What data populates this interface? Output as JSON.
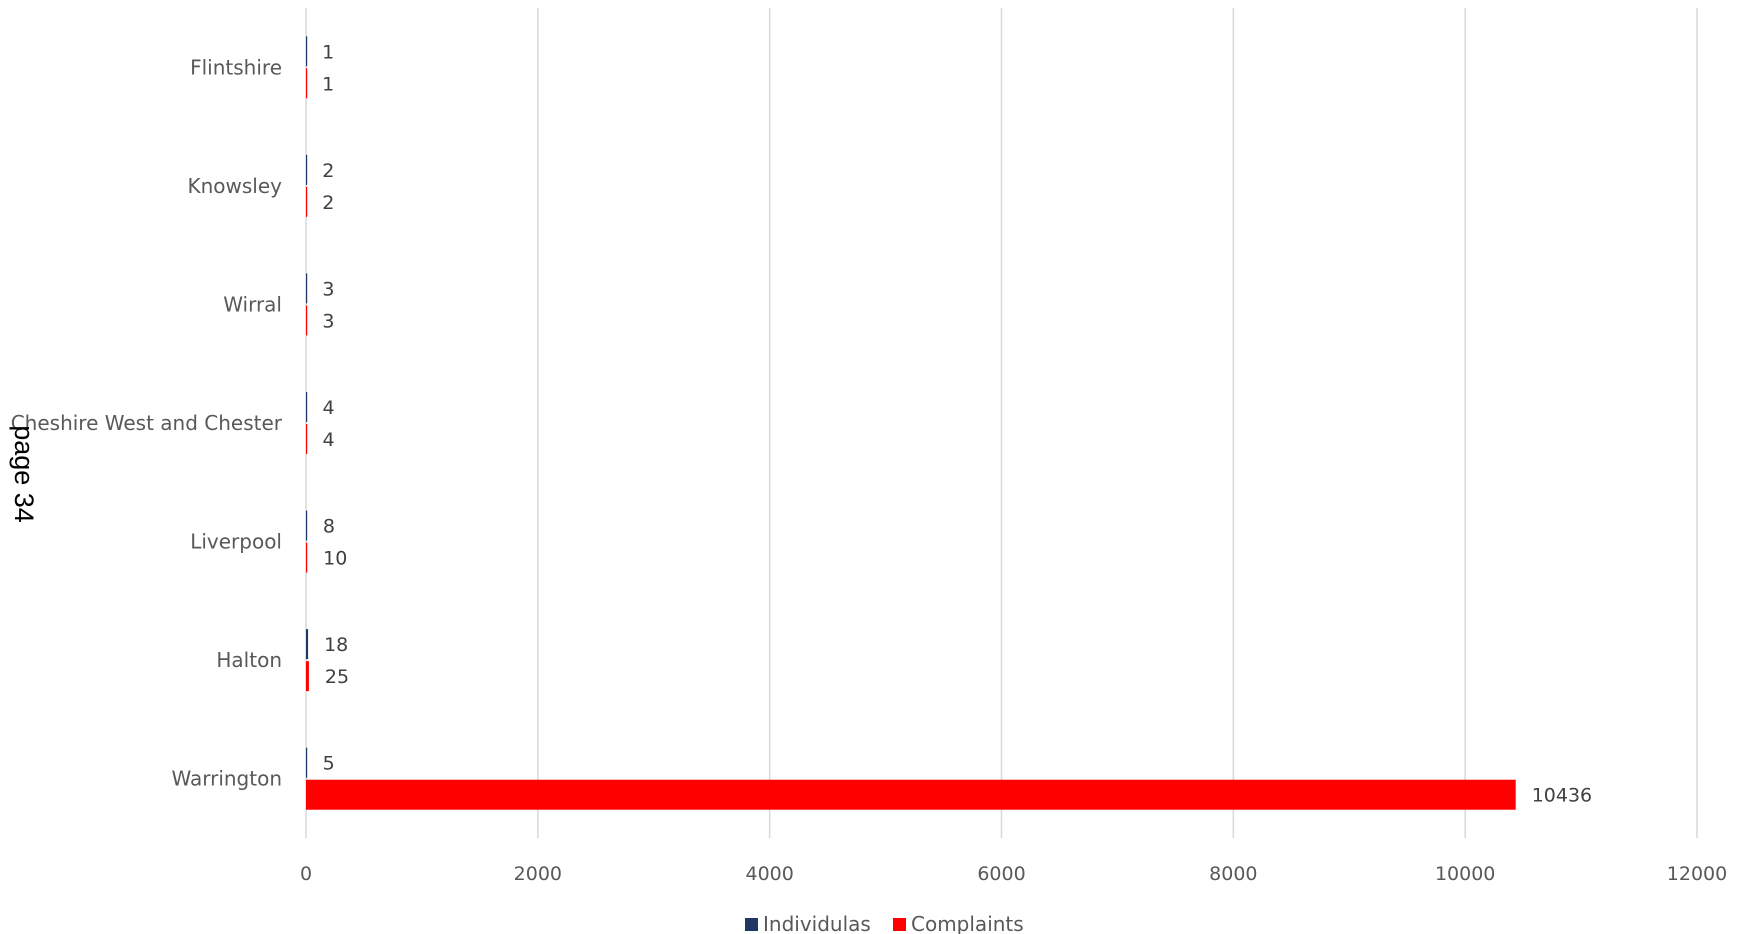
{
  "page_note": "page 34",
  "chart_data": {
    "type": "bar",
    "orientation": "horizontal",
    "categories": [
      "Flintshire",
      "Knowsley",
      "Wirral",
      "Cheshire West and Chester",
      "Liverpool",
      "Halton",
      "Warrington"
    ],
    "series": [
      {
        "name": "Individulas",
        "color": "#1f3864",
        "values": [
          1,
          2,
          3,
          4,
          8,
          18,
          5
        ]
      },
      {
        "name": "Complaints",
        "color": "#ff0000",
        "values": [
          1,
          2,
          3,
          4,
          10,
          25,
          10436
        ]
      }
    ],
    "xlim": [
      0,
      12000
    ],
    "xticks": [
      0,
      2000,
      4000,
      6000,
      8000,
      10000,
      12000
    ],
    "grid": true,
    "legend": "bottom",
    "gridline_color": "#d9d9d9"
  }
}
